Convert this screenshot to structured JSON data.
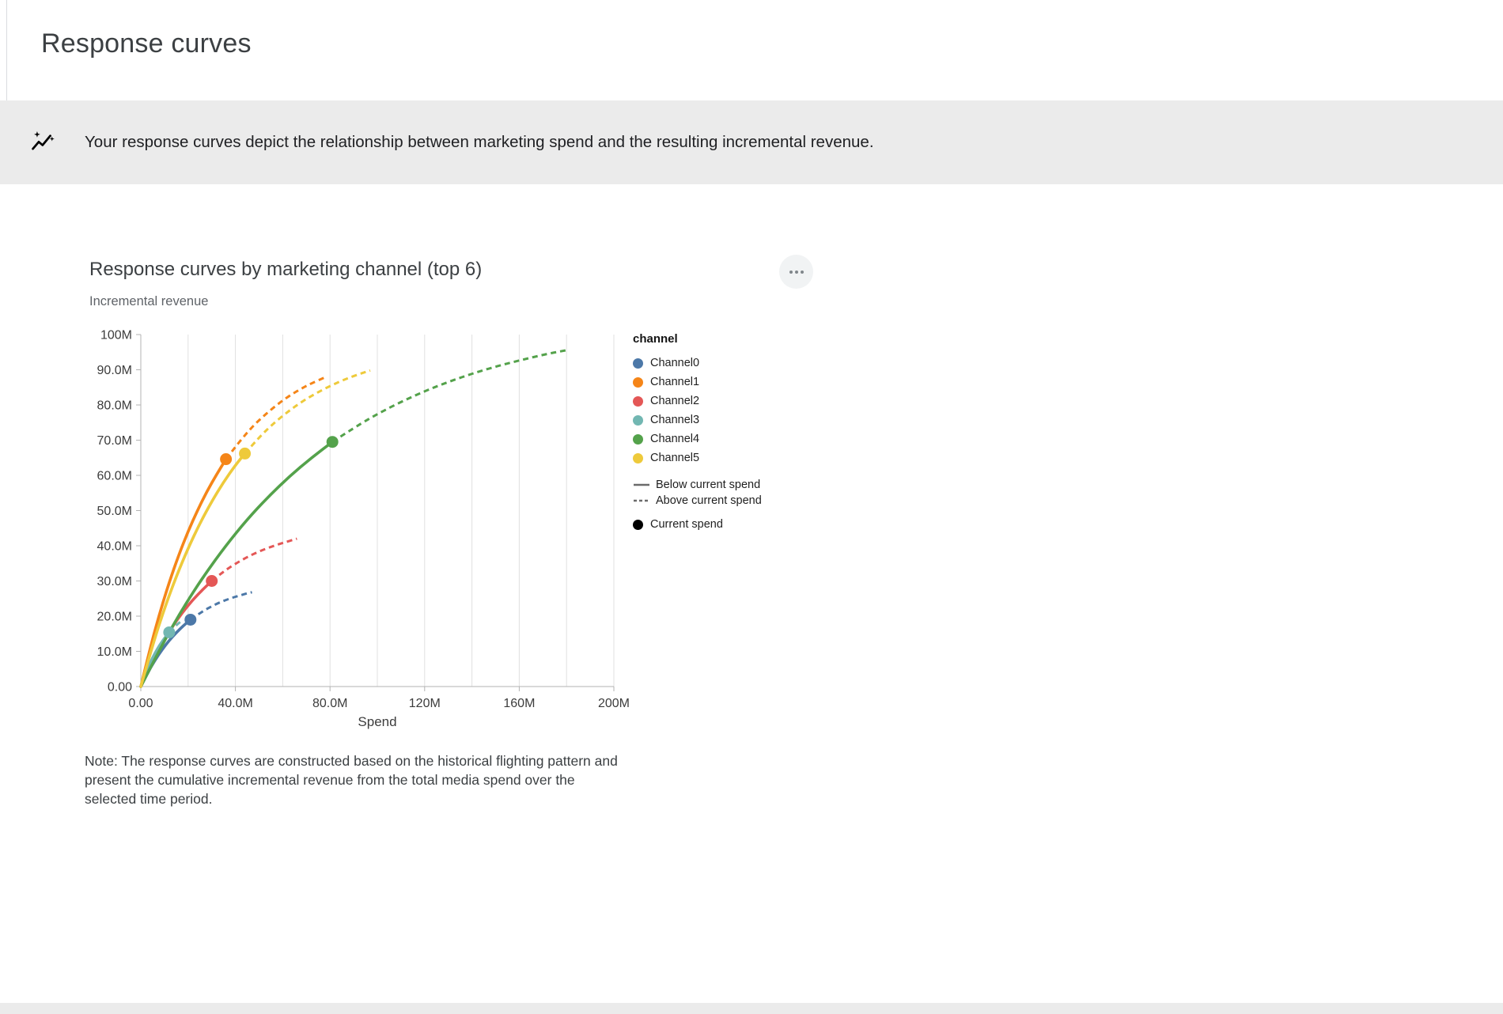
{
  "page": {
    "title": "Response curves",
    "banner": {
      "icon": "insights-sparkline-icon",
      "text": "Your response curves depict the relationship between marketing spend and the resulting incremental revenue."
    },
    "menu_icon": "more-options-icon",
    "note": "Note: The response curves are constructed based on the historical flighting pattern and present the cumulative incremental revenue from the total media spend over the selected time period."
  },
  "chart_data": {
    "type": "line",
    "title": "Response curves by marketing channel (top 6)",
    "ylabel": "Incremental revenue",
    "xlabel": "Spend",
    "units": "spend and revenue in millions (M)",
    "xlim": [
      0,
      200
    ],
    "ylim": [
      0,
      100
    ],
    "grid": {
      "vertical_every": 20,
      "horizontal": false
    },
    "x_ticks": [
      {
        "value": 0,
        "label": "0.00"
      },
      {
        "value": 40,
        "label": "40.0M"
      },
      {
        "value": 80,
        "label": "80.0M"
      },
      {
        "value": 120,
        "label": "120M"
      },
      {
        "value": 160,
        "label": "160M"
      },
      {
        "value": 200,
        "label": "200M"
      }
    ],
    "y_ticks": [
      {
        "value": 0,
        "label": "0.00"
      },
      {
        "value": 10,
        "label": "10.0M"
      },
      {
        "value": 20,
        "label": "20.0M"
      },
      {
        "value": 30,
        "label": "30.0M"
      },
      {
        "value": 40,
        "label": "40.0M"
      },
      {
        "value": 50,
        "label": "50.0M"
      },
      {
        "value": 60,
        "label": "60.0M"
      },
      {
        "value": 70,
        "label": "70.0M"
      },
      {
        "value": 80,
        "label": "80.0M"
      },
      {
        "value": 90,
        "label": "90.0M"
      },
      {
        "value": 100,
        "label": "100M"
      }
    ],
    "legend": {
      "title": "channel",
      "position": "right",
      "line_styles": [
        {
          "label": "Below current spend",
          "dash": false
        },
        {
          "label": "Above current spend",
          "dash": true
        }
      ],
      "point_label": "Current spend"
    },
    "series": [
      {
        "name": "Channel0",
        "color": "#4c78a8",
        "current_spend": [
          21,
          19
        ],
        "below_current": [
          [
            0,
            0
          ],
          [
            3,
            4
          ],
          [
            6,
            7.5
          ],
          [
            9,
            10.5
          ],
          [
            12,
            13.1
          ],
          [
            15,
            15.3
          ],
          [
            18,
            17.3
          ],
          [
            21,
            19
          ]
        ],
        "above_current": [
          [
            21,
            19
          ],
          [
            24,
            20.4
          ],
          [
            27,
            21.7
          ],
          [
            30,
            22.8
          ],
          [
            33,
            23.8
          ],
          [
            36,
            24.6
          ],
          [
            39,
            25.3
          ],
          [
            42,
            25.9
          ],
          [
            45,
            26.5
          ],
          [
            47,
            26.8
          ]
        ]
      },
      {
        "name": "Channel1",
        "color": "#f58518",
        "current_spend": [
          36,
          64.6
        ],
        "below_current": [
          [
            0,
            0
          ],
          [
            4,
            11.1
          ],
          [
            8,
            20.9
          ],
          [
            12,
            29.6
          ],
          [
            16,
            37.3
          ],
          [
            20,
            44.1
          ],
          [
            24,
            50.1
          ],
          [
            28,
            55.5
          ],
          [
            32,
            60.2
          ],
          [
            36,
            64.6
          ]
        ],
        "above_current": [
          [
            36,
            64.6
          ],
          [
            40,
            68.1
          ],
          [
            44,
            71.4
          ],
          [
            48,
            74.4
          ],
          [
            52,
            76.9
          ],
          [
            56,
            79.2
          ],
          [
            60,
            81.3
          ],
          [
            64,
            83.1
          ],
          [
            68,
            84.7
          ],
          [
            72,
            86.1
          ],
          [
            78,
            87.9
          ]
        ]
      },
      {
        "name": "Channel2",
        "color": "#e45756",
        "current_spend": [
          30,
          30
        ],
        "below_current": [
          [
            0,
            0
          ],
          [
            5,
            7.3
          ],
          [
            10,
            13.5
          ],
          [
            15,
            18.7
          ],
          [
            20,
            23.1
          ],
          [
            25,
            26.8
          ],
          [
            30,
            30
          ]
        ],
        "above_current": [
          [
            30,
            30
          ],
          [
            35,
            32.7
          ],
          [
            40,
            34.9
          ],
          [
            45,
            36.8
          ],
          [
            50,
            38.4
          ],
          [
            55,
            39.7
          ],
          [
            60,
            40.8
          ],
          [
            66,
            42
          ]
        ]
      },
      {
        "name": "Channel3",
        "color": "#72b7b2",
        "current_spend": [
          12,
          15.4
        ],
        "below_current": [
          [
            0,
            0
          ],
          [
            2,
            3.7
          ],
          [
            4,
            6.8
          ],
          [
            6,
            9.5
          ],
          [
            8,
            11.8
          ],
          [
            10,
            13.7
          ],
          [
            12,
            15.4
          ]
        ],
        "above_current": [
          [
            12,
            15.4
          ],
          [
            14,
            16.8
          ],
          [
            16,
            18
          ],
          [
            18,
            19
          ]
        ]
      },
      {
        "name": "Channel4",
        "color": "#54a24b",
        "current_spend": [
          81,
          69.5
        ],
        "below_current": [
          [
            0,
            0
          ],
          [
            9,
            11.9
          ],
          [
            18,
            22.5
          ],
          [
            27,
            31.8
          ],
          [
            36,
            40.1
          ],
          [
            45,
            47.5
          ],
          [
            54,
            54
          ],
          [
            63,
            59.8
          ],
          [
            72,
            64.9
          ],
          [
            81,
            69.5
          ]
        ],
        "above_current": [
          [
            81,
            69.5
          ],
          [
            91,
            73.9
          ],
          [
            101,
            77.8
          ],
          [
            111,
            81.2
          ],
          [
            121,
            84.2
          ],
          [
            131,
            86.8
          ],
          [
            141,
            89.1
          ],
          [
            151,
            91.1
          ],
          [
            161,
            92.8
          ],
          [
            171,
            94.4
          ],
          [
            181,
            95.7
          ]
        ]
      },
      {
        "name": "Channel5",
        "color": "#eeca3b",
        "current_spend": [
          44,
          66.2
        ],
        "below_current": [
          [
            0,
            0
          ],
          [
            5,
            11.8
          ],
          [
            10,
            22.2
          ],
          [
            15,
            31.3
          ],
          [
            20,
            39.3
          ],
          [
            25,
            46.4
          ],
          [
            30,
            52.6
          ],
          [
            35,
            58.1
          ],
          [
            40,
            62.9
          ],
          [
            44,
            66.2
          ]
        ],
        "above_current": [
          [
            44,
            66.2
          ],
          [
            50,
            70.8
          ],
          [
            56,
            74.7
          ],
          [
            62,
            78
          ],
          [
            68,
            80.9
          ],
          [
            74,
            83.3
          ],
          [
            80,
            85.4
          ],
          [
            86,
            87.2
          ],
          [
            92,
            88.7
          ],
          [
            97,
            89.8
          ]
        ]
      }
    ]
  }
}
